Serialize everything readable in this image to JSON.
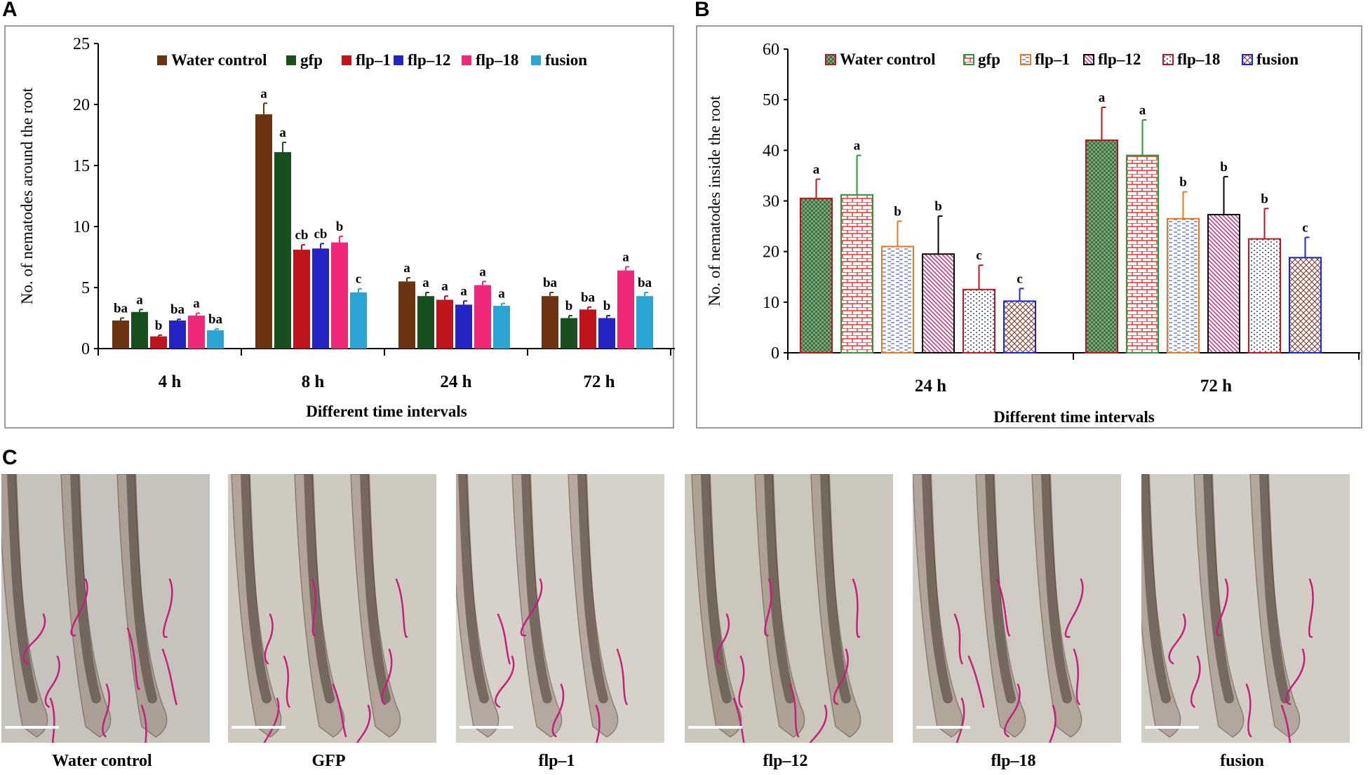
{
  "panels": {
    "a": "A",
    "b": "B",
    "c": "C"
  },
  "chart_data": [
    {
      "type": "bar",
      "title": "",
      "xlabel": "Different time intervals",
      "ylabel": "No. of nematodes around the root",
      "ylim": [
        0,
        25
      ],
      "yticks": [
        0,
        5,
        10,
        15,
        20,
        25
      ],
      "legend_position": "top",
      "categories": [
        "4 h",
        "8 h",
        "24 h",
        "72 h"
      ],
      "series": [
        {
          "name": "Water control",
          "color": "#6b3310",
          "values": [
            2.3,
            19.2,
            5.5,
            4.3
          ],
          "errors": [
            0.2,
            0.9,
            0.3,
            0.3
          ],
          "letters": [
            "ba",
            "a",
            "a",
            "ba"
          ]
        },
        {
          "name": "gfp",
          "color": "#184f1f",
          "values": [
            3.0,
            16.1,
            4.3,
            2.5
          ],
          "errors": [
            0.2,
            0.8,
            0.3,
            0.2
          ],
          "letters": [
            "a",
            "a",
            "a",
            "b"
          ]
        },
        {
          "name": "flp–1",
          "color": "#c0141c",
          "values": [
            1.0,
            8.1,
            4.0,
            3.2
          ],
          "errors": [
            0.1,
            0.4,
            0.3,
            0.2
          ],
          "letters": [
            "b",
            "cb",
            "a",
            "ba"
          ]
        },
        {
          "name": "flp–12",
          "color": "#2424c4",
          "values": [
            2.3,
            8.2,
            3.6,
            2.5
          ],
          "errors": [
            0.1,
            0.4,
            0.3,
            0.2
          ],
          "letters": [
            "ba",
            "cb",
            "a",
            "b"
          ]
        },
        {
          "name": "flp–18",
          "color": "#f0287a",
          "values": [
            2.7,
            8.7,
            5.2,
            6.4
          ],
          "errors": [
            0.2,
            0.5,
            0.3,
            0.3
          ],
          "letters": [
            "a",
            "b",
            "a",
            "a"
          ]
        },
        {
          "name": "fusion",
          "color": "#2aa4d4",
          "values": [
            1.5,
            4.6,
            3.5,
            4.3
          ],
          "errors": [
            0.1,
            0.3,
            0.2,
            0.3
          ],
          "letters": [
            "ba",
            "c",
            "a",
            "ba"
          ]
        }
      ]
    },
    {
      "type": "bar",
      "title": "",
      "xlabel": "Different time intervals",
      "ylabel": "No. of nematodes inside the root",
      "ylim": [
        0,
        60
      ],
      "yticks": [
        0,
        10,
        20,
        30,
        40,
        50,
        60
      ],
      "legend_position": "top",
      "categories": [
        "24 h",
        "72 h"
      ],
      "series": [
        {
          "name": "Water control",
          "color": "#c0141c",
          "fill": "#3f6e40",
          "pattern": "checker",
          "values": [
            30.5,
            42.0
          ],
          "errors": [
            3.8,
            6.5
          ],
          "letters": [
            "a",
            "a"
          ]
        },
        {
          "name": "gfp",
          "color": "#2a9a3a",
          "fill": "#e83030",
          "pattern": "brick",
          "values": [
            31.2,
            39.0
          ],
          "errors": [
            7.8,
            7.0
          ],
          "letters": [
            "a",
            "a"
          ]
        },
        {
          "name": "flp–1",
          "color": "#e47a1a",
          "fill": "#4a5fd8",
          "pattern": "dash",
          "values": [
            21.0,
            26.5
          ],
          "errors": [
            5.0,
            5.3
          ],
          "letters": [
            "b",
            "b"
          ]
        },
        {
          "name": "flp–12",
          "color": "#000000",
          "fill": "#c81a78",
          "pattern": "diag",
          "values": [
            19.5,
            27.3
          ],
          "errors": [
            7.5,
            7.5
          ],
          "letters": [
            "b",
            "b"
          ]
        },
        {
          "name": "flp–18",
          "color": "#c0141c",
          "fill": "#203a8a",
          "pattern": "dots",
          "values": [
            12.5,
            22.5
          ],
          "errors": [
            4.8,
            6.0
          ],
          "letters": [
            "c",
            "b"
          ]
        },
        {
          "name": "fusion",
          "color": "#1a24d8",
          "fill": "#7a3020",
          "pattern": "cross",
          "values": [
            10.2,
            18.8
          ],
          "errors": [
            2.5,
            4.0
          ],
          "letters": [
            "c",
            "c"
          ]
        }
      ]
    }
  ],
  "photos": [
    {
      "label": "Water control"
    },
    {
      "label": "GFP"
    },
    {
      "label": "flp–1"
    },
    {
      "label": "flp–12"
    },
    {
      "label": "flp–18"
    },
    {
      "label": "fusion"
    }
  ]
}
